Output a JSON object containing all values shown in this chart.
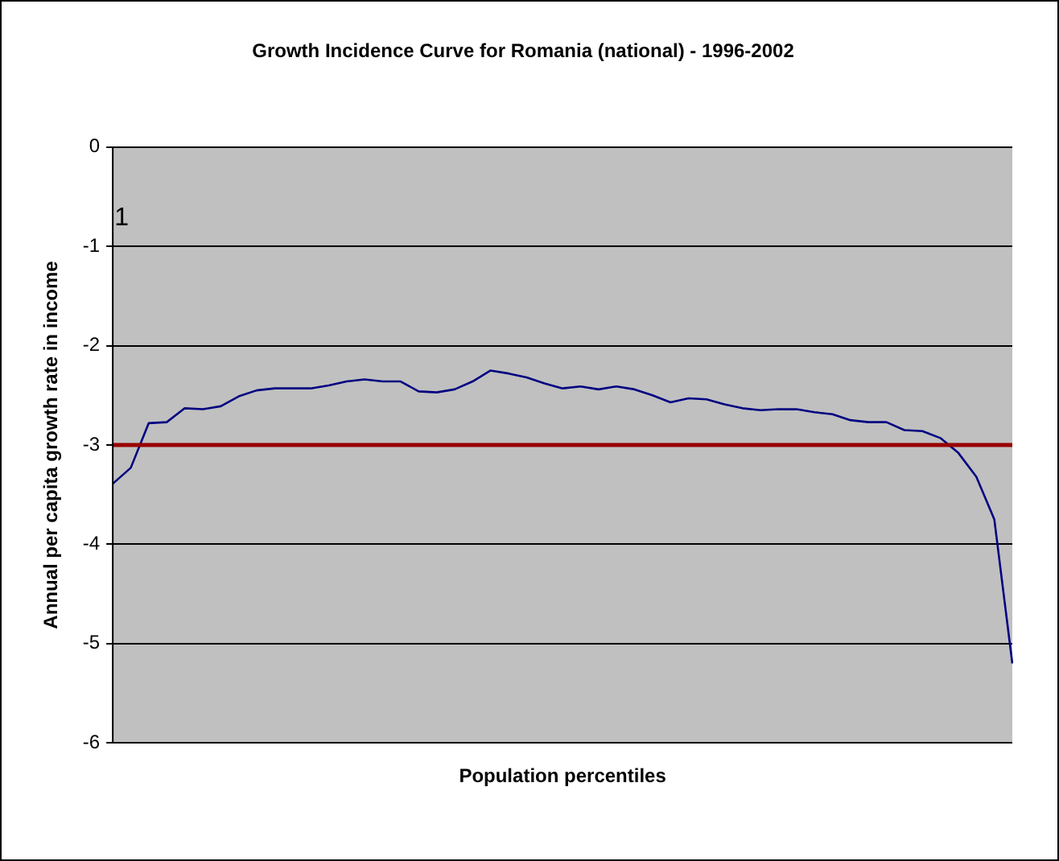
{
  "chart_data": {
    "type": "line",
    "title": "Growth Incidence Curve for Romania (national) - 1996-2002",
    "xlabel": "Population percentiles",
    "ylabel": "Annual per capita growth rate in income",
    "categories": [
      null,
      null,
      null,
      null,
      null,
      null,
      null,
      null,
      null,
      null,
      null,
      null,
      null,
      null,
      null,
      null,
      null,
      null,
      null,
      null,
      null,
      null,
      null,
      null,
      null,
      null,
      null,
      null,
      null,
      null,
      null,
      null,
      null,
      null,
      null,
      null,
      null,
      null,
      null,
      null,
      null,
      null,
      null,
      null,
      null,
      null,
      null,
      null,
      null,
      null,
      null
    ],
    "series": [
      {
        "color": "#000080",
        "values": [
          -3.39,
          -3.23,
          -2.78,
          -2.77,
          -2.63,
          -2.64,
          -2.61,
          -2.51,
          -2.45,
          -2.43,
          -2.43,
          -2.43,
          -2.4,
          -2.36,
          -2.34,
          -2.36,
          -2.36,
          -2.46,
          -2.47,
          -2.44,
          -2.36,
          -2.25,
          -2.28,
          -2.32,
          -2.38,
          -2.43,
          -2.41,
          -2.44,
          -2.41,
          -2.44,
          -2.5,
          -2.57,
          -2.53,
          -2.54,
          -2.59,
          -2.63,
          -2.65,
          -2.64,
          -2.64,
          -2.67,
          -2.69,
          -2.75,
          -2.77,
          -2.77,
          -2.85,
          -2.86,
          -2.93,
          -3.08,
          -3.32,
          -3.75,
          -5.2
        ]
      }
    ],
    "ylim": [
      -6,
      0
    ],
    "yticks": [
      -6,
      -5,
      -4,
      -3,
      -2,
      -1,
      0
    ],
    "grid": "y",
    "tick_labels": "y",
    "marker": "none",
    "line_style": "solid",
    "ref_lines": [
      {
        "axis": "y",
        "value": -3,
        "color": "#990000"
      }
    ],
    "annotations": [
      "1"
    ]
  }
}
